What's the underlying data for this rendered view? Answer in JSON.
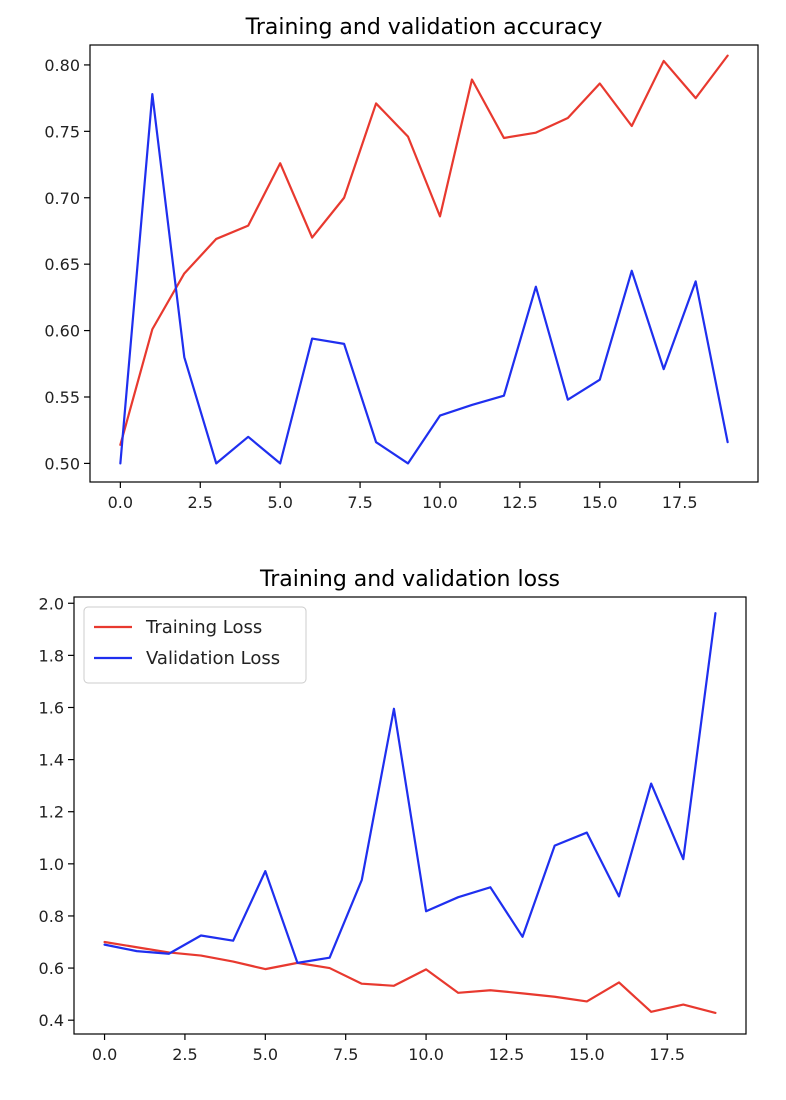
{
  "chart_data": [
    {
      "type": "line",
      "title": "Training and validation accuracy",
      "xlabel": "",
      "ylabel": "",
      "xlim": [
        -0.95,
        19.95
      ],
      "ylim": [
        0.486,
        0.815
      ],
      "x_ticks": [
        0.0,
        2.5,
        5.0,
        7.5,
        10.0,
        12.5,
        15.0,
        17.5
      ],
      "x_tick_labels": [
        "0.0",
        "2.5",
        "5.0",
        "7.5",
        "10.0",
        "12.5",
        "15.0",
        "17.5"
      ],
      "y_ticks": [
        0.5,
        0.55,
        0.6,
        0.65,
        0.7,
        0.75,
        0.8
      ],
      "y_tick_labels": [
        "0.50",
        "0.55",
        "0.60",
        "0.65",
        "0.70",
        "0.75",
        "0.80"
      ],
      "grid": false,
      "legend": null,
      "x": [
        0,
        1,
        2,
        3,
        4,
        5,
        6,
        7,
        8,
        9,
        10,
        11,
        12,
        13,
        14,
        15,
        16,
        17,
        18,
        19
      ],
      "series": [
        {
          "color": "#e8392f",
          "values": [
            0.514,
            0.601,
            0.643,
            0.669,
            0.679,
            0.726,
            0.67,
            0.7,
            0.771,
            0.746,
            0.686,
            0.789,
            0.745,
            0.749,
            0.76,
            0.786,
            0.754,
            0.803,
            0.775,
            0.807
          ]
        },
        {
          "color": "#1f2fef",
          "values": [
            0.5,
            0.778,
            0.58,
            0.5,
            0.52,
            0.5,
            0.594,
            0.59,
            0.516,
            0.5,
            0.536,
            0.544,
            0.551,
            0.633,
            0.548,
            0.563,
            0.645,
            0.571,
            0.637,
            0.516
          ]
        }
      ]
    },
    {
      "type": "line",
      "title": "Training and validation loss",
      "xlabel": "",
      "ylabel": "",
      "xlim": [
        -0.95,
        19.95
      ],
      "ylim": [
        0.347,
        2.024
      ],
      "x_ticks": [
        0.0,
        2.5,
        5.0,
        7.5,
        10.0,
        12.5,
        15.0,
        17.5
      ],
      "x_tick_labels": [
        "0.0",
        "2.5",
        "5.0",
        "7.5",
        "10.0",
        "12.5",
        "15.0",
        "17.5"
      ],
      "y_ticks": [
        0.4,
        0.6,
        0.8,
        1.0,
        1.2,
        1.4,
        1.6,
        1.8,
        2.0
      ],
      "y_tick_labels": [
        "0.4",
        "0.6",
        "0.8",
        "1.0",
        "1.2",
        "1.4",
        "1.6",
        "1.8",
        "2.0"
      ],
      "grid": false,
      "legend": "top-left",
      "x": [
        0,
        1,
        2,
        3,
        4,
        5,
        6,
        7,
        8,
        9,
        10,
        11,
        12,
        13,
        14,
        15,
        16,
        17,
        18,
        19
      ],
      "series": [
        {
          "name": "Training Loss",
          "color": "#e8392f",
          "values": [
            0.7,
            0.68,
            0.66,
            0.648,
            0.625,
            0.596,
            0.62,
            0.6,
            0.54,
            0.532,
            0.595,
            0.505,
            0.515,
            0.503,
            0.49,
            0.472,
            0.545,
            0.432,
            0.46,
            0.428
          ]
        },
        {
          "name": "Validation Loss",
          "color": "#1f2fef",
          "values": [
            0.69,
            0.665,
            0.655,
            0.725,
            0.705,
            0.972,
            0.62,
            0.64,
            0.938,
            1.595,
            0.818,
            0.872,
            0.91,
            0.72,
            1.07,
            1.12,
            0.875,
            1.308,
            1.018,
            1.962
          ]
        }
      ]
    }
  ]
}
